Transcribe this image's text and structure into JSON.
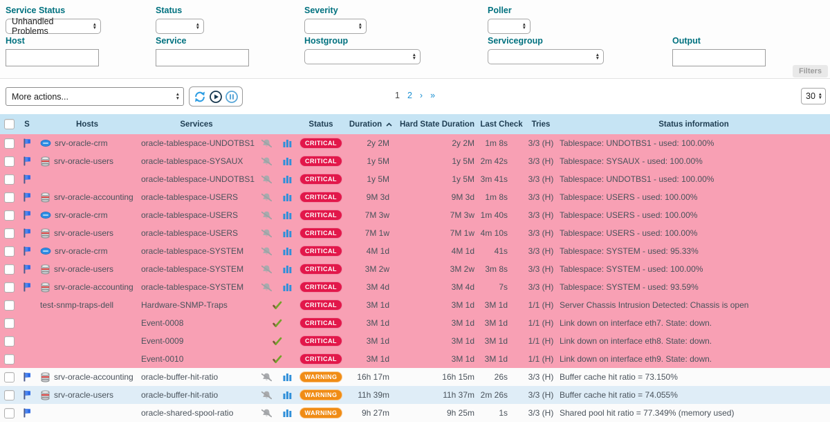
{
  "colors": {
    "critical": "#E2174A",
    "warning": "#F08C15",
    "row_critical": "#F8A0B4",
    "row_even": "#FBFBFB",
    "row_odd": "#DFEDF7",
    "header_bg": "#C6E4F4",
    "link": "#1A8FD1",
    "filter_label": "#00717F"
  },
  "filters": {
    "service_status": {
      "label": "Service Status",
      "value": "Unhandled Problems"
    },
    "status": {
      "label": "Status",
      "value": ""
    },
    "severity": {
      "label": "Severity",
      "value": ""
    },
    "poller": {
      "label": "Poller",
      "value": ""
    },
    "host": {
      "label": "Host",
      "value": ""
    },
    "service": {
      "label": "Service",
      "value": ""
    },
    "hostgroup": {
      "label": "Hostgroup",
      "value": ""
    },
    "servicegroup": {
      "label": "Servicegroup",
      "value": ""
    },
    "output": {
      "label": "Output",
      "value": ""
    },
    "filters_button_label": "Filters"
  },
  "toolbar": {
    "more_actions_label": "More actions...",
    "action_icons": [
      "refresh-icon",
      "play-icon",
      "pause-icon"
    ],
    "pagination": [
      {
        "label": "1",
        "current": true
      },
      {
        "label": "2",
        "current": false
      },
      {
        "label": "›",
        "current": false
      },
      {
        "label": "»",
        "current": false
      }
    ],
    "page_size": "30"
  },
  "table": {
    "headers": {
      "s": "S",
      "hosts": "Hosts",
      "services": "Services",
      "status": "Status",
      "duration": "Duration",
      "hard_state_duration": "Hard State Duration",
      "last_check": "Last Check",
      "tries": "Tries",
      "status_information": "Status information"
    },
    "sort": {
      "column": "duration",
      "direction": "asc"
    },
    "rows": [
      {
        "cb": true,
        "flag": true,
        "hicon": "app-icon",
        "host": "srv-oracle-crm",
        "svc": "oracle-tablespace-UNDOTBS1",
        "ic": "bc",
        "st": "CRITICAL",
        "dur": "2y 2M",
        "hsd": "2y 2M",
        "lc": "1m 8s",
        "tr": "3/3 (H)",
        "info": "Tablespace: UNDOTBS1 - used: 100.00%",
        "bg": "critical"
      },
      {
        "cb": true,
        "flag": true,
        "hicon": "database-icon",
        "host": "srv-oracle-users",
        "svc": "oracle-tablespace-SYSAUX",
        "ic": "bc",
        "st": "CRITICAL",
        "dur": "1y 5M",
        "hsd": "1y 5M",
        "lc": "2m 42s",
        "tr": "3/3 (H)",
        "info": "Tablespace: SYSAUX - used: 100.00%",
        "bg": "critical"
      },
      {
        "cb": true,
        "flag": true,
        "hicon": null,
        "host": "",
        "svc": "oracle-tablespace-UNDOTBS1",
        "ic": "bc",
        "st": "CRITICAL",
        "dur": "1y 5M",
        "hsd": "1y 5M",
        "lc": "3m 41s",
        "tr": "3/3 (H)",
        "info": "Tablespace: UNDOTBS1 - used: 100.00%",
        "bg": "critical"
      },
      {
        "cb": true,
        "flag": true,
        "hicon": "database-icon",
        "host": "srv-oracle-accounting",
        "svc": "oracle-tablespace-USERS",
        "ic": "bc",
        "st": "CRITICAL",
        "dur": "9M 3d",
        "hsd": "9M 3d",
        "lc": "1m 8s",
        "tr": "3/3 (H)",
        "info": "Tablespace: USERS - used: 100.00%",
        "bg": "critical"
      },
      {
        "cb": true,
        "flag": true,
        "hicon": "app-icon",
        "host": "srv-oracle-crm",
        "svc": "oracle-tablespace-USERS",
        "ic": "bc",
        "st": "CRITICAL",
        "dur": "7M 3w",
        "hsd": "7M 3w",
        "lc": "1m 40s",
        "tr": "3/3 (H)",
        "info": "Tablespace: USERS - used: 100.00%",
        "bg": "critical"
      },
      {
        "cb": true,
        "flag": true,
        "hicon": "database-icon",
        "host": "srv-oracle-users",
        "svc": "oracle-tablespace-USERS",
        "ic": "bc",
        "st": "CRITICAL",
        "dur": "7M 1w",
        "hsd": "7M 1w",
        "lc": "4m 10s",
        "tr": "3/3 (H)",
        "info": "Tablespace: USERS - used: 100.00%",
        "bg": "critical"
      },
      {
        "cb": true,
        "flag": true,
        "hicon": "app-icon",
        "host": "srv-oracle-crm",
        "svc": "oracle-tablespace-SYSTEM",
        "ic": "bc",
        "st": "CRITICAL",
        "dur": "4M 1d",
        "hsd": "4M 1d",
        "lc": "41s",
        "tr": "3/3 (H)",
        "info": "Tablespace: SYSTEM - used: 95.33%",
        "bg": "critical"
      },
      {
        "cb": true,
        "flag": true,
        "hicon": "database-icon",
        "host": "srv-oracle-users",
        "svc": "oracle-tablespace-SYSTEM",
        "ic": "bc",
        "st": "CRITICAL",
        "dur": "3M 2w",
        "hsd": "3M 2w",
        "lc": "3m 8s",
        "tr": "3/3 (H)",
        "info": "Tablespace: SYSTEM - used: 100.00%",
        "bg": "critical"
      },
      {
        "cb": true,
        "flag": true,
        "hicon": "database-icon",
        "host": "srv-oracle-accounting",
        "svc": "oracle-tablespace-SYSTEM",
        "ic": "bc",
        "st": "CRITICAL",
        "dur": "3M 4d",
        "hsd": "3M 4d",
        "lc": "7s",
        "tr": "3/3 (H)",
        "info": "Tablespace: SYSTEM - used: 93.59%",
        "bg": "critical"
      },
      {
        "cb": true,
        "flag": false,
        "hicon": null,
        "host": "test-snmp-traps-dell",
        "svc": "Hardware-SNMP-Traps",
        "ic": "ck",
        "st": "CRITICAL",
        "dur": "3M 1d",
        "hsd": "3M 1d",
        "lc": "3M 1d",
        "tr": "1/1 (H)",
        "info": "Server Chassis Intrusion Detected: Chassis is open",
        "bg": "critical"
      },
      {
        "cb": true,
        "flag": false,
        "hicon": null,
        "host": "",
        "svc": "Event-0008",
        "ic": "ck",
        "st": "CRITICAL",
        "dur": "3M 1d",
        "hsd": "3M 1d",
        "lc": "3M 1d",
        "tr": "1/1 (H)",
        "info": "Link down on interface eth7. State: down.",
        "bg": "critical"
      },
      {
        "cb": true,
        "flag": false,
        "hicon": null,
        "host": "",
        "svc": "Event-0009",
        "ic": "ck",
        "st": "CRITICAL",
        "dur": "3M 1d",
        "hsd": "3M 1d",
        "lc": "3M 1d",
        "tr": "1/1 (H)",
        "info": "Link down on interface eth8. State: down.",
        "bg": "critical"
      },
      {
        "cb": true,
        "flag": false,
        "hicon": null,
        "host": "",
        "svc": "Event-0010",
        "ic": "ck",
        "st": "CRITICAL",
        "dur": "3M 1d",
        "hsd": "3M 1d",
        "lc": "3M 1d",
        "tr": "1/1 (H)",
        "info": "Link down on interface eth9. State: down.",
        "bg": "critical"
      },
      {
        "cb": true,
        "flag": true,
        "hicon": "database-icon",
        "host": "srv-oracle-accounting",
        "svc": "oracle-buffer-hit-ratio",
        "ic": "bc",
        "st": "WARNING",
        "dur": "16h 17m",
        "hsd": "16h 15m",
        "lc": "26s",
        "tr": "3/3 (H)",
        "info": "Buffer cache hit ratio = 73.150%",
        "bg": "even"
      },
      {
        "cb": true,
        "flag": true,
        "hicon": "database-icon",
        "host": "srv-oracle-users",
        "svc": "oracle-buffer-hit-ratio",
        "ic": "bc",
        "st": "WARNING",
        "dur": "11h 39m",
        "hsd": "11h 37m",
        "lc": "2m 26s",
        "tr": "3/3 (H)",
        "info": "Buffer cache hit ratio = 74.055%",
        "bg": "odd"
      },
      {
        "cb": true,
        "flag": true,
        "hicon": null,
        "host": "",
        "svc": "oracle-shared-spool-ratio",
        "ic": "bc",
        "st": "WARNING",
        "dur": "9h 27m",
        "hsd": "9h 25m",
        "lc": "1s",
        "tr": "3/3 (H)",
        "info": "Shared pool hit ratio = 77.349% (memory used)",
        "bg": "even"
      }
    ]
  }
}
